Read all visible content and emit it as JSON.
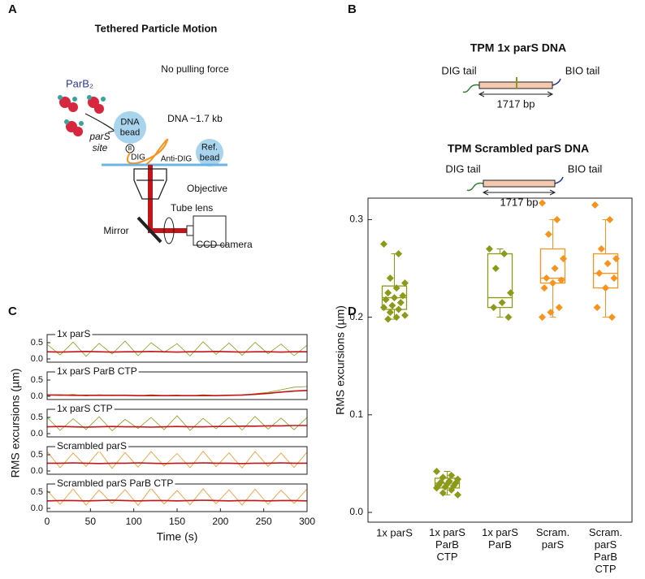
{
  "labels": {
    "a": "A",
    "b": "B",
    "c": "C",
    "d": "D"
  },
  "diagram_a": {
    "title": "Tethered Particle Motion",
    "force": "No pulling force",
    "protein": "ParB₂",
    "dna_bead": "DNA\nbead",
    "biotin": "B",
    "dna_length": "DNA ~1.7 kb",
    "site": "parS\nsite",
    "ref_bead": "Ref.\nbead",
    "dig": "DIG",
    "anti_dig": "Anti-DIG",
    "objective": "Objective",
    "tube_lens": "Tube lens",
    "mirror": "Mirror",
    "camera": "CCD camera"
  },
  "diagram_b": {
    "constructs": [
      {
        "title": "TPM 1x parS DNA",
        "color": "#8c9a1a",
        "left": "DIG tail",
        "right": "BIO tail",
        "length": "1717 bp"
      },
      {
        "title": "TPM Scrambled parS DNA",
        "color": "#f7931e",
        "left": "DIG tail",
        "right": "BIO tail",
        "length": "1717 bp"
      }
    ]
  },
  "chart_data": [
    {
      "type": "line",
      "ylabel": "RMS excursions (µm)",
      "xlabel": "Time (s)",
      "xlim": [
        0,
        300
      ],
      "xticks": [
        0,
        50,
        100,
        150,
        200,
        250,
        300
      ],
      "ylim": [
        -0.1,
        0.75
      ],
      "yticks": [
        {
          "value": 0,
          "label": "0.0"
        },
        {
          "value": 0.5,
          "label": "0.5"
        }
      ],
      "x": [
        0,
        15,
        30,
        45,
        60,
        75,
        90,
        105,
        120,
        135,
        150,
        165,
        180,
        195,
        210,
        225,
        240,
        255,
        270,
        285,
        300
      ],
      "panels": [
        {
          "title": "1x parS",
          "series": [
            {
              "color": "#8c9a1a",
              "values": [
                0.45,
                0.12,
                0.52,
                0.08,
                0.48,
                0.15,
                0.55,
                0.1,
                0.5,
                0.2,
                0.47,
                0.09,
                0.53,
                0.14,
                0.49,
                0.11,
                0.51,
                0.16,
                0.46,
                0.1,
                0.42
              ]
            },
            {
              "color": "#c0161a",
              "values": [
                0.22,
                0.21,
                0.22,
                0.23,
                0.22,
                0.21,
                0.22,
                0.22,
                0.23,
                0.22,
                0.21,
                0.22,
                0.22,
                0.23,
                0.22,
                0.21,
                0.22,
                0.22,
                0.21,
                0.22,
                0.22
              ]
            }
          ]
        },
        {
          "title": "1x parS ParB CTP",
          "series": [
            {
              "color": "#8c9a1a",
              "values": [
                0.05,
                0.02,
                0.06,
                0.01,
                0.05,
                0.02,
                0.04,
                0.01,
                0.05,
                0.02,
                0.04,
                0.01,
                0.05,
                0.02,
                0.04,
                0.03,
                0.08,
                0.12,
                0.2,
                0.28,
                0.3
              ]
            },
            {
              "color": "#c0161a",
              "values": [
                0.04,
                0.04,
                0.03,
                0.03,
                0.03,
                0.03,
                0.03,
                0.02,
                0.02,
                0.02,
                0.02,
                0.02,
                0.02,
                0.02,
                0.03,
                0.04,
                0.06,
                0.09,
                0.13,
                0.16,
                0.18
              ]
            }
          ]
        },
        {
          "title": "1x parS CTP",
          "series": [
            {
              "color": "#8c9a1a",
              "values": [
                0.5,
                0.1,
                0.46,
                0.13,
                0.52,
                0.09,
                0.44,
                0.16,
                0.5,
                0.12,
                0.55,
                0.1,
                0.47,
                0.15,
                0.5,
                0.11,
                0.53,
                0.14,
                0.48,
                0.12,
                0.5
              ]
            },
            {
              "color": "#c0161a",
              "values": [
                0.21,
                0.22,
                0.21,
                0.2,
                0.21,
                0.22,
                0.21,
                0.21,
                0.2,
                0.21,
                0.22,
                0.21,
                0.21,
                0.22,
                0.22,
                0.23,
                0.23,
                0.24,
                0.24,
                0.25,
                0.25
              ]
            }
          ]
        },
        {
          "title": "Scrambled parS",
          "series": [
            {
              "color": "#f7931e",
              "values": [
                0.6,
                0.1,
                0.55,
                0.14,
                0.62,
                0.08,
                0.57,
                0.12,
                0.6,
                0.15,
                0.54,
                0.1,
                0.61,
                0.13,
                0.56,
                0.09,
                0.6,
                0.14,
                0.55,
                0.11,
                0.58
              ]
            },
            {
              "color": "#c0161a",
              "values": [
                0.24,
                0.24,
                0.25,
                0.24,
                0.23,
                0.24,
                0.24,
                0.25,
                0.24,
                0.23,
                0.24,
                0.24,
                0.25,
                0.24,
                0.24,
                0.23,
                0.24,
                0.24,
                0.25,
                0.24,
                0.24
              ]
            }
          ]
        },
        {
          "title": "Scrambled parS ParB CTP",
          "series": [
            {
              "color": "#f7931e",
              "values": [
                0.55,
                0.12,
                0.6,
                0.1,
                0.56,
                0.15,
                0.58,
                0.09,
                0.62,
                0.13,
                0.55,
                0.11,
                0.6,
                0.14,
                0.57,
                0.1,
                0.59,
                0.12,
                0.56,
                0.15,
                0.6
              ]
            },
            {
              "color": "#c0161a",
              "values": [
                0.23,
                0.24,
                0.24,
                0.23,
                0.24,
                0.25,
                0.24,
                0.23,
                0.24,
                0.24,
                0.23,
                0.24,
                0.25,
                0.24,
                0.23,
                0.24,
                0.24,
                0.23,
                0.24,
                0.24,
                0.23
              ]
            }
          ]
        }
      ]
    },
    {
      "type": "box",
      "ylabel": "RMS excursions (µm)",
      "ylim": [
        -0.01,
        0.322
      ],
      "yticks": [
        {
          "value": 0,
          "label": "0.0"
        },
        {
          "value": 0.1,
          "label": "0.1"
        },
        {
          "value": 0.2,
          "label": "0.2"
        },
        {
          "value": 0.3,
          "label": "0.3"
        }
      ],
      "categories": [
        "1x parS",
        "1x parS\nParB\nCTP",
        "1x parS\nParB",
        "Scram.\nparS",
        "Scram.\nparS\nParB\nCTP"
      ],
      "colors": [
        "#8c9a1a",
        "#8c9a1a",
        "#8c9a1a",
        "#f7931e",
        "#f7931e"
      ],
      "boxes": [
        {
          "whislo": 0.198,
          "q1": 0.208,
          "med": 0.22,
          "q3": 0.232,
          "whishi": 0.265,
          "points": [
            0.275,
            0.265,
            0.24,
            0.235,
            0.23,
            0.225,
            0.222,
            0.22,
            0.218,
            0.215,
            0.212,
            0.21,
            0.208,
            0.205,
            0.202,
            0.2,
            0.198
          ]
        },
        {
          "whislo": 0.018,
          "q1": 0.025,
          "med": 0.03,
          "q3": 0.035,
          "whishi": 0.042,
          "points": [
            0.042,
            0.038,
            0.036,
            0.034,
            0.032,
            0.031,
            0.03,
            0.029,
            0.028,
            0.027,
            0.026,
            0.025,
            0.023,
            0.02,
            0.018
          ]
        },
        {
          "whislo": 0.2,
          "q1": 0.21,
          "med": 0.22,
          "q3": 0.265,
          "whishi": 0.27,
          "points": [
            0.27,
            0.265,
            0.25,
            0.225,
            0.215,
            0.21,
            0.2
          ]
        },
        {
          "whislo": 0.2,
          "q1": 0.235,
          "med": 0.24,
          "q3": 0.27,
          "whishi": 0.3,
          "points": [
            0.317,
            0.3,
            0.285,
            0.26,
            0.25,
            0.24,
            0.238,
            0.235,
            0.23,
            0.21,
            0.205,
            0.2
          ]
        },
        {
          "whislo": 0.2,
          "q1": 0.23,
          "med": 0.245,
          "q3": 0.265,
          "whishi": 0.3,
          "points": [
            0.315,
            0.3,
            0.27,
            0.26,
            0.255,
            0.245,
            0.24,
            0.23,
            0.21,
            0.2
          ]
        }
      ]
    }
  ]
}
